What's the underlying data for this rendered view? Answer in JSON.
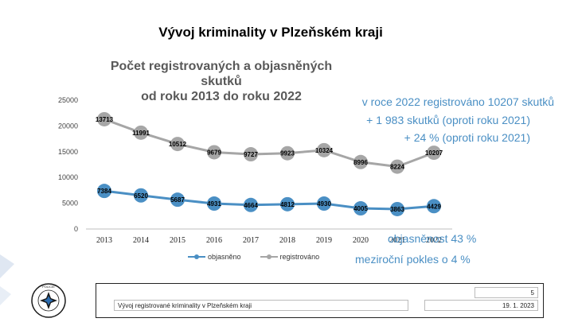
{
  "slide_title": "Vývoj kriminality v Plzeňském kraji",
  "chart_title_line1": "Počet registrovaných a objasněných skutků",
  "chart_title_line2": "od roku 2013 do roku 2022",
  "notes": {
    "line1": "v roce 2022 registrováno 10207 skutků",
    "line2": "+ 1 983 skutků (oproti roku 2021)",
    "line3": "+  24 % (oproti roku 2021)",
    "line4": "objasněnost 43 %",
    "line5": "meziroční pokles o 4 %"
  },
  "chart_data": {
    "type": "line",
    "categories": [
      "2013",
      "2014",
      "2015",
      "2016",
      "2017",
      "2018",
      "2019",
      "2020",
      "2021",
      "2022"
    ],
    "x_tick_labels": [
      "2013",
      "2014",
      "2015",
      "2016",
      "2017",
      "2018",
      "2019",
      "2020",
      "2021",
      "2022"
    ],
    "series": [
      {
        "name": "objasněno",
        "color": "#4a8fc4",
        "values": [
          7384,
          6520,
          5687,
          4931,
          4664,
          4812,
          4930,
          4005,
          3863,
          4429
        ],
        "plot_values": [
          7384,
          6520,
          5687,
          4931,
          4664,
          4812,
          4930,
          4005,
          3863,
          4429
        ]
      },
      {
        "name": "registrováno",
        "color": "#a6a6a6",
        "values": [
          13713,
          11991,
          10512,
          9679,
          9727,
          9923,
          10324,
          8996,
          8224,
          10207
        ],
        "plot_values": [
          21300,
          18700,
          16500,
          14900,
          14500,
          14700,
          15300,
          13000,
          12100,
          14800
        ]
      }
    ],
    "ylim": [
      0,
      25000
    ],
    "yticks": [
      0,
      5000,
      10000,
      15000,
      20000,
      25000
    ],
    "grid": false,
    "legend_position": "bottom"
  },
  "footer": {
    "page_number": "5",
    "title": "Vývoj registrované kriminality v Plzeňském kraji",
    "date": "19. 1. 2023"
  },
  "logo_text": "POLICIE ČESKÉ REPUBLIKY"
}
